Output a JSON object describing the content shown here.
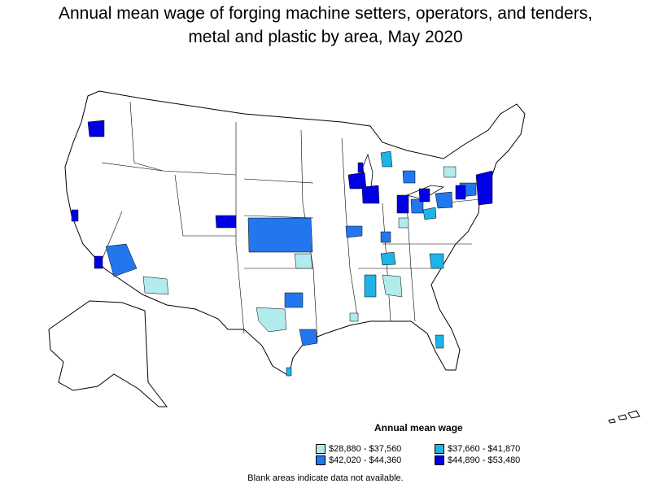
{
  "title_line1": "Annual mean wage of forging machine setters, operators, and tenders,",
  "title_line2": "metal and plastic by area, May 2020",
  "legend": {
    "title": "Annual mean wage",
    "items": [
      {
        "label": "$28,880 - $37,560",
        "color": "#b2ebeb"
      },
      {
        "label": "$37,660 - $41,870",
        "color": "#1eb4e6"
      },
      {
        "label": "$42,020 - $44,360",
        "color": "#2277ee"
      },
      {
        "label": "$44,890 - $53,480",
        "color": "#0000e6"
      }
    ]
  },
  "note": "Blank areas indicate data not available."
}
